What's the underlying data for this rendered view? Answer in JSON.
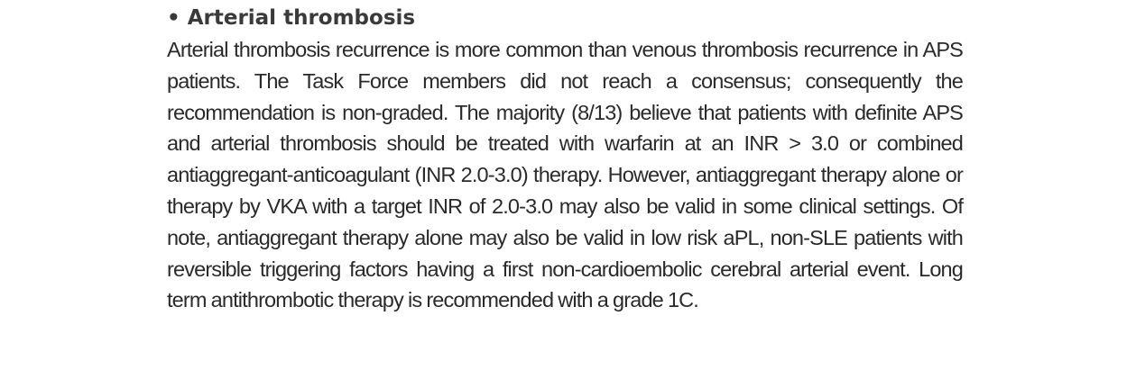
{
  "section": {
    "bullet": "•",
    "heading": "Arterial thrombosis",
    "body": "Arterial thrombosis recurrence is more common than venous thrombosis recurrence in APS patients. The Task Force members did not reach a consensus; consequently the recommendation is non-graded. The majority (8/13) believe that patients with definite APS and arterial thrombosis should be treated with warfarin at an INR > 3.0 or combined antiaggregant-anticoagulant (INR 2.0-3.0) therapy. However, antiaggregant therapy alone or therapy by VKA with a target INR of 2.0-3.0 may also be valid in some clinical settings. Of note, antiaggregant therapy alone may also be valid in low risk aPL, non-SLE patients with reversible triggering factors having a first non-cardioembolic cerebral arterial event. Long term antithrombotic therapy is recommended with a grade 1C."
  }
}
